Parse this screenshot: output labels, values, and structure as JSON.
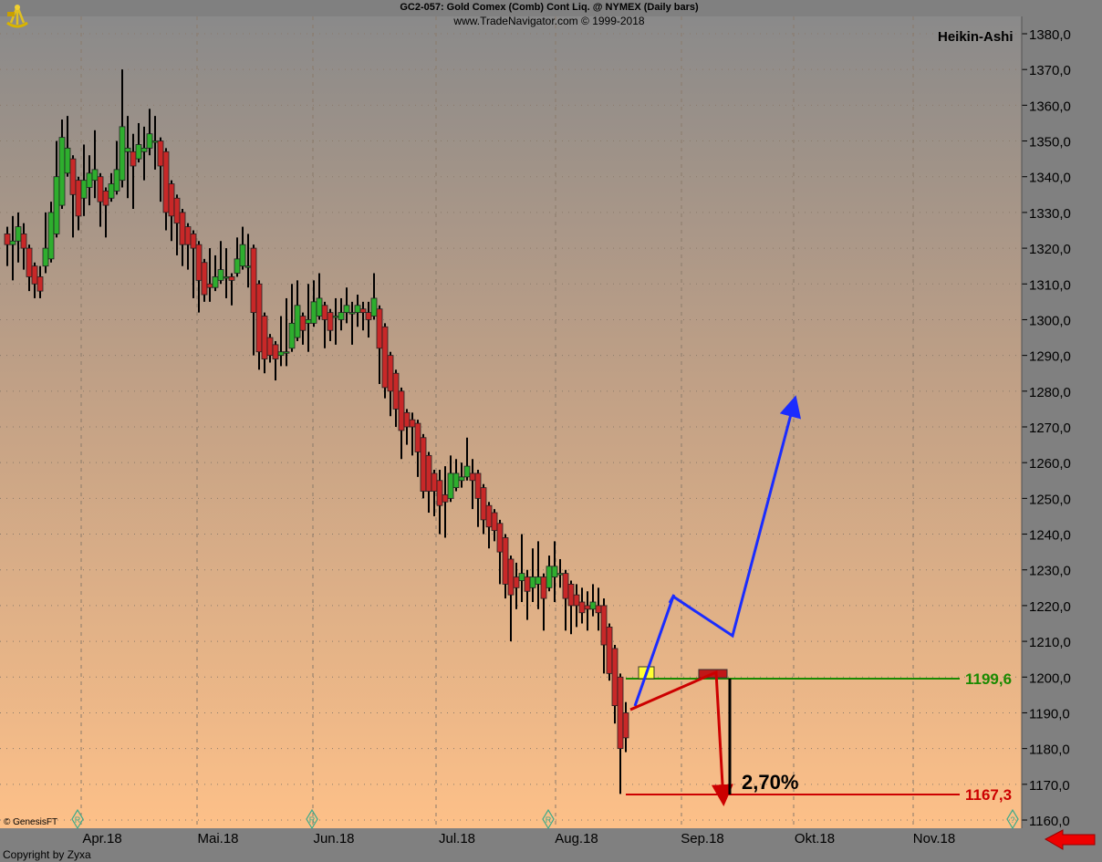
{
  "header": {
    "title": "GC2-057:  Gold Comex (Comb) Cont Liq. @ NYMEX  (Daily bars)",
    "subtitle": "www.TradeNavigator.com © 1999-2018"
  },
  "footer": {
    "copyright": "Copyright by Zyxa",
    "vendor": "© GenesisFT"
  },
  "colors": {
    "bull": "#2eae2e",
    "bear": "#c82828",
    "support": "#1a8a00",
    "resistance": "#cc0000",
    "projection": "#1a2cff",
    "highlight": "#ffff33"
  },
  "chart_data": {
    "type": "candlestick",
    "style_label": "Heikin-Ashi",
    "y_ticks": [
      "1380,0",
      "1370,0",
      "1360,0",
      "1350,0",
      "1340,0",
      "1330,0",
      "1320,0",
      "1310,0",
      "1300,0",
      "1290,0",
      "1280,0",
      "1270,0",
      "1260,0",
      "1250,0",
      "1240,0",
      "1230,0",
      "1220,0",
      "1210,0",
      "1200,0",
      "1190,0",
      "1180,0",
      "1170,0",
      "1160,0"
    ],
    "ylim": [
      1160,
      1380
    ],
    "x_labels": [
      "Apr.18",
      "Mai.18",
      "Jun.18",
      "Jul.18",
      "Aug.18",
      "Sep.18",
      "Okt.18",
      "Nov.18"
    ],
    "grid": true,
    "bars_ohlc": [
      [
        1324,
        1326,
        1315,
        1321
      ],
      [
        1321,
        1329,
        1311,
        1322
      ],
      [
        1322,
        1330,
        1316,
        1326
      ],
      [
        1324,
        1327,
        1314,
        1320
      ],
      [
        1320,
        1321,
        1308,
        1312
      ],
      [
        1315,
        1316,
        1306,
        1310
      ],
      [
        1312,
        1315,
        1306,
        1308
      ],
      [
        1315,
        1330,
        1313,
        1320
      ],
      [
        1317,
        1333,
        1316,
        1330
      ],
      [
        1324,
        1350,
        1323,
        1340
      ],
      [
        1332,
        1356,
        1331,
        1351
      ],
      [
        1341,
        1357,
        1340,
        1348
      ],
      [
        1345,
        1346,
        1323,
        1335
      ],
      [
        1339,
        1340,
        1325,
        1329
      ],
      [
        1334,
        1349,
        1329,
        1339
      ],
      [
        1337,
        1346,
        1332,
        1341
      ],
      [
        1339,
        1353,
        1334,
        1342
      ],
      [
        1340,
        1341,
        1326,
        1333
      ],
      [
        1336,
        1337,
        1323,
        1332
      ],
      [
        1334,
        1341,
        1333,
        1338
      ],
      [
        1336,
        1350,
        1335,
        1342
      ],
      [
        1339,
        1370,
        1337,
        1354
      ],
      [
        1347,
        1357,
        1334,
        1348
      ],
      [
        1347,
        1352,
        1331,
        1343
      ],
      [
        1345,
        1355,
        1344,
        1349
      ],
      [
        1347,
        1354,
        1339,
        1348
      ],
      [
        1348,
        1359,
        1346,
        1352
      ],
      [
        1350,
        1357,
        1342,
        1350
      ],
      [
        1350,
        1351,
        1333,
        1343
      ],
      [
        1347,
        1348,
        1325,
        1330
      ],
      [
        1338,
        1339,
        1322,
        1329
      ],
      [
        1334,
        1335,
        1318,
        1327
      ],
      [
        1330,
        1331,
        1315,
        1321
      ],
      [
        1326,
        1327,
        1314,
        1321
      ],
      [
        1324,
        1325,
        1306,
        1320
      ],
      [
        1321,
        1322,
        1302,
        1311
      ],
      [
        1316,
        1317,
        1305,
        1307
      ],
      [
        1310,
        1320,
        1305,
        1309
      ],
      [
        1309,
        1318,
        1308,
        1312
      ],
      [
        1311,
        1322,
        1310,
        1314
      ],
      [
        1312,
        1320,
        1306,
        1312
      ],
      [
        1312,
        1313,
        1304,
        1311
      ],
      [
        1313,
        1323,
        1312,
        1317
      ],
      [
        1315,
        1326,
        1314,
        1321
      ],
      [
        1315,
        1324,
        1309,
        1315
      ],
      [
        1320,
        1321,
        1290,
        1302
      ],
      [
        1310,
        1311,
        1286,
        1291
      ],
      [
        1301,
        1302,
        1285,
        1289
      ],
      [
        1295,
        1296,
        1288,
        1290
      ],
      [
        1293,
        1294,
        1283,
        1289
      ],
      [
        1290,
        1301,
        1287,
        1291
      ],
      [
        1291,
        1306,
        1287,
        1291
      ],
      [
        1292,
        1310,
        1291,
        1299
      ],
      [
        1295,
        1311,
        1294,
        1304
      ],
      [
        1301,
        1302,
        1293,
        1297
      ],
      [
        1299,
        1310,
        1291,
        1300
      ],
      [
        1299,
        1311,
        1298,
        1305
      ],
      [
        1301,
        1313,
        1300,
        1306
      ],
      [
        1304,
        1305,
        1292,
        1300
      ],
      [
        1302,
        1303,
        1294,
        1297
      ],
      [
        1301,
        1306,
        1293,
        1301
      ],
      [
        1300,
        1306,
        1297,
        1302
      ],
      [
        1302,
        1309,
        1299,
        1304
      ],
      [
        1302,
        1305,
        1293,
        1302
      ],
      [
        1302,
        1307,
        1298,
        1304
      ],
      [
        1303,
        1305,
        1297,
        1302
      ],
      [
        1302,
        1305,
        1295,
        1300
      ],
      [
        1301,
        1313,
        1300,
        1306
      ],
      [
        1303,
        1304,
        1282,
        1292
      ],
      [
        1298,
        1299,
        1278,
        1281
      ],
      [
        1290,
        1291,
        1273,
        1280
      ],
      [
        1285,
        1286,
        1270,
        1275
      ],
      [
        1280,
        1281,
        1261,
        1269
      ],
      [
        1274,
        1275,
        1265,
        1270
      ],
      [
        1272,
        1274,
        1262,
        1270
      ],
      [
        1271,
        1272,
        1256,
        1263
      ],
      [
        1267,
        1268,
        1250,
        1252
      ],
      [
        1262,
        1263,
        1246,
        1252
      ],
      [
        1257,
        1258,
        1245,
        1252
      ],
      [
        1255,
        1258,
        1240,
        1248
      ],
      [
        1251,
        1259,
        1239,
        1249
      ],
      [
        1250,
        1262,
        1249,
        1257
      ],
      [
        1253,
        1261,
        1252,
        1257
      ],
      [
        1255,
        1260,
        1253,
        1256
      ],
      [
        1256,
        1267,
        1255,
        1259
      ],
      [
        1257,
        1261,
        1247,
        1255
      ],
      [
        1257,
        1258,
        1242,
        1250
      ],
      [
        1253,
        1254,
        1240,
        1244
      ],
      [
        1248,
        1249,
        1236,
        1242
      ],
      [
        1246,
        1247,
        1238,
        1241
      ],
      [
        1243,
        1244,
        1226,
        1235
      ],
      [
        1239,
        1240,
        1222,
        1226
      ],
      [
        1233,
        1234,
        1210,
        1223
      ],
      [
        1228,
        1232,
        1219,
        1225
      ],
      [
        1227,
        1240,
        1221,
        1229
      ],
      [
        1228,
        1230,
        1216,
        1224
      ],
      [
        1225,
        1236,
        1221,
        1228
      ],
      [
        1226,
        1238,
        1219,
        1228
      ],
      [
        1228,
        1229,
        1213,
        1222
      ],
      [
        1225,
        1234,
        1224,
        1231
      ],
      [
        1228,
        1238,
        1221,
        1231
      ],
      [
        1229,
        1233,
        1225,
        1229
      ],
      [
        1229,
        1230,
        1213,
        1222
      ],
      [
        1226,
        1227,
        1212,
        1220
      ],
      [
        1223,
        1226,
        1214,
        1220
      ],
      [
        1221,
        1225,
        1215,
        1218
      ],
      [
        1220,
        1224,
        1213,
        1219
      ],
      [
        1219,
        1226,
        1217,
        1221
      ],
      [
        1220,
        1225,
        1213,
        1218
      ],
      [
        1220,
        1222,
        1201,
        1209
      ],
      [
        1214,
        1215,
        1199,
        1201
      ],
      [
        1208,
        1209,
        1187,
        1192
      ],
      [
        1200,
        1201,
        1167.3,
        1180
      ],
      [
        1190,
        1193,
        1179,
        1183
      ]
    ],
    "annotations": {
      "support_level": "1199,6",
      "support_value": 1199.6,
      "low_level": "1167,3",
      "low_value": 1167.3,
      "percent_label": "2,70%"
    },
    "markers": [
      "R",
      "R",
      "R",
      "?"
    ]
  }
}
